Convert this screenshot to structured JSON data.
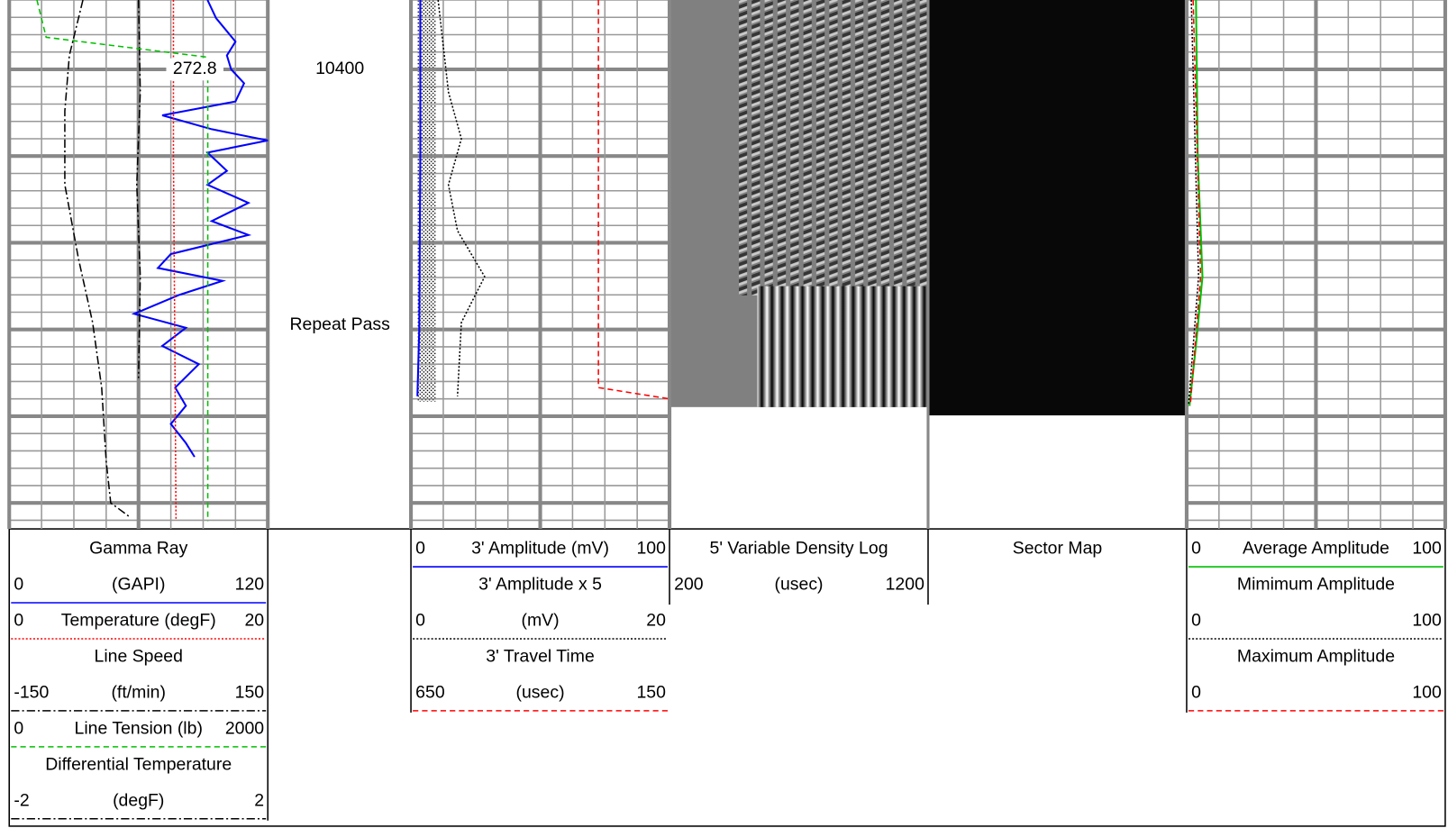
{
  "depth_range": [
    10392,
    10453
  ],
  "depth_label": 10400,
  "annotation": "Repeat Pass",
  "readout": 272.8,
  "tracks": [
    {
      "display": "grid",
      "curves": [
        {
          "title": "Gamma Ray",
          "label": "(GAPI)",
          "scale": [
            0,
            120
          ],
          "color": "#0000ff",
          "line": "solid",
          "depths": [
            10392.0,
            10394.1,
            10396.8,
            10398.4,
            10400.0,
            10401.6,
            10403.7,
            10405.3,
            10406.9,
            10408.2,
            10409.6,
            10411.7,
            10413.3,
            10415.4,
            10417.5,
            10419.1,
            10421.3,
            10422.9,
            10424.4,
            10426.0,
            10428.2,
            10429.8,
            10431.9,
            10434.0,
            10436.7,
            10438.8,
            10440.9,
            10443.1,
            10444.7
          ],
          "values": [
            92,
            96,
            105,
            101,
            103,
            109,
            105,
            71,
            94,
            120,
            92,
            101,
            92,
            111,
            94,
            111,
            75,
            69,
            99,
            79,
            58,
            82,
            71,
            88,
            77,
            82,
            75,
            82,
            86
          ]
        },
        {
          "label": "Temperature (degF)",
          "scale": [
            0,
            20
          ],
          "color": "#ff0000",
          "line": "dotted",
          "depths": [
            10392,
            10410,
            10430,
            10452
          ],
          "values": [
            12.7,
            12.7,
            12.8,
            12.9
          ]
        },
        {
          "title": "Line Speed",
          "label": "(ft/min)",
          "scale": [
            -150,
            150
          ],
          "color": "#000000",
          "line": "dashdot",
          "depths": [
            10392,
            10402.6,
            10413.3,
            10423.9,
            10435.6
          ],
          "values": [
            0,
            2,
            -2,
            2,
            0
          ]
        },
        {
          "label": "Line Tension (lb)",
          "scale": [
            0,
            2000
          ],
          "color": "#00c000",
          "line": "dashed",
          "depths": [
            10392,
            10396.3,
            10398.6,
            10452.1
          ],
          "values": [
            214,
            286,
            1536,
            1536
          ]
        },
        {
          "title": "Differential Temperature",
          "label": "(degF)",
          "scale": [
            -2,
            2
          ],
          "color": "#000000",
          "line": "dashdot",
          "depths": [
            10392,
            10398.4,
            10404.8,
            10413.3,
            10421.8,
            10429.2,
            10436.7,
            10445.2,
            10450.0,
            10451.6
          ],
          "values": [
            -0.86,
            -1.07,
            -1.14,
            -1.14,
            -0.93,
            -0.71,
            -0.57,
            -0.5,
            -0.43,
            -0.14
          ]
        }
      ]
    },
    {
      "display": "grid",
      "curves": [
        {
          "label": "3' Amplitude (mV)",
          "scale": [
            0,
            100
          ],
          "color": "#0000ff",
          "line": "solid",
          "depths": [
            10392,
            10410,
            10430,
            10437.7
          ],
          "values": [
            3.6,
            3.6,
            3.2,
            2.5
          ]
        },
        {
          "title": "3' Amplitude x 5",
          "label": "(mV)",
          "scale": [
            0,
            20
          ],
          "color": "#000000",
          "line": "dotted",
          "depths": [
            10392,
            10402.6,
            10408.0,
            10413.3,
            10418.6,
            10423.9,
            10429.2,
            10437.7
          ],
          "values": [
            2.1,
            2.9,
            3.9,
            2.9,
            3.6,
            5.7,
            3.9,
            3.6
          ]
        },
        {
          "title": "3' Travel Time",
          "label": "(usec)",
          "scale": [
            650,
            150
          ],
          "color": "#ff0000",
          "line": "dashed",
          "depths": [
            10392,
            10436.7,
            10438.0
          ],
          "values": [
            287.5,
            287.5,
            150
          ]
        }
      ]
    },
    {
      "display": "vdl",
      "curves": [
        {
          "title": "5' Variable Density Log",
          "label": "(usec)",
          "scale": [
            200,
            1200
          ]
        }
      ]
    },
    {
      "display": "sector",
      "curves": [
        {
          "title": "Sector Map"
        }
      ]
    },
    {
      "display": "grid",
      "curves": [
        {
          "label": "Average Amplitude",
          "scale": [
            0,
            100
          ],
          "color": "#00c000",
          "line": "solid",
          "depths": [
            10392,
            10410,
            10423.9,
            10431.0,
            10438.8
          ],
          "values": [
            3.6,
            4.3,
            6.1,
            3.9,
            1.1
          ]
        },
        {
          "title": "Mimimum Amplitude",
          "scale": [
            0,
            100
          ],
          "color": "#000000",
          "line": "dotted",
          "depths": [
            10392,
            10423.9,
            10438.8
          ],
          "values": [
            1.8,
            4.6,
            0.7
          ]
        },
        {
          "title": "Maximum Amplitude",
          "scale": [
            0,
            100
          ],
          "color": "#ff0000",
          "line": "dashed",
          "depths": [
            10392,
            10423.9,
            10438.8
          ],
          "values": [
            2.5,
            5.4,
            1.4
          ]
        }
      ]
    }
  ]
}
